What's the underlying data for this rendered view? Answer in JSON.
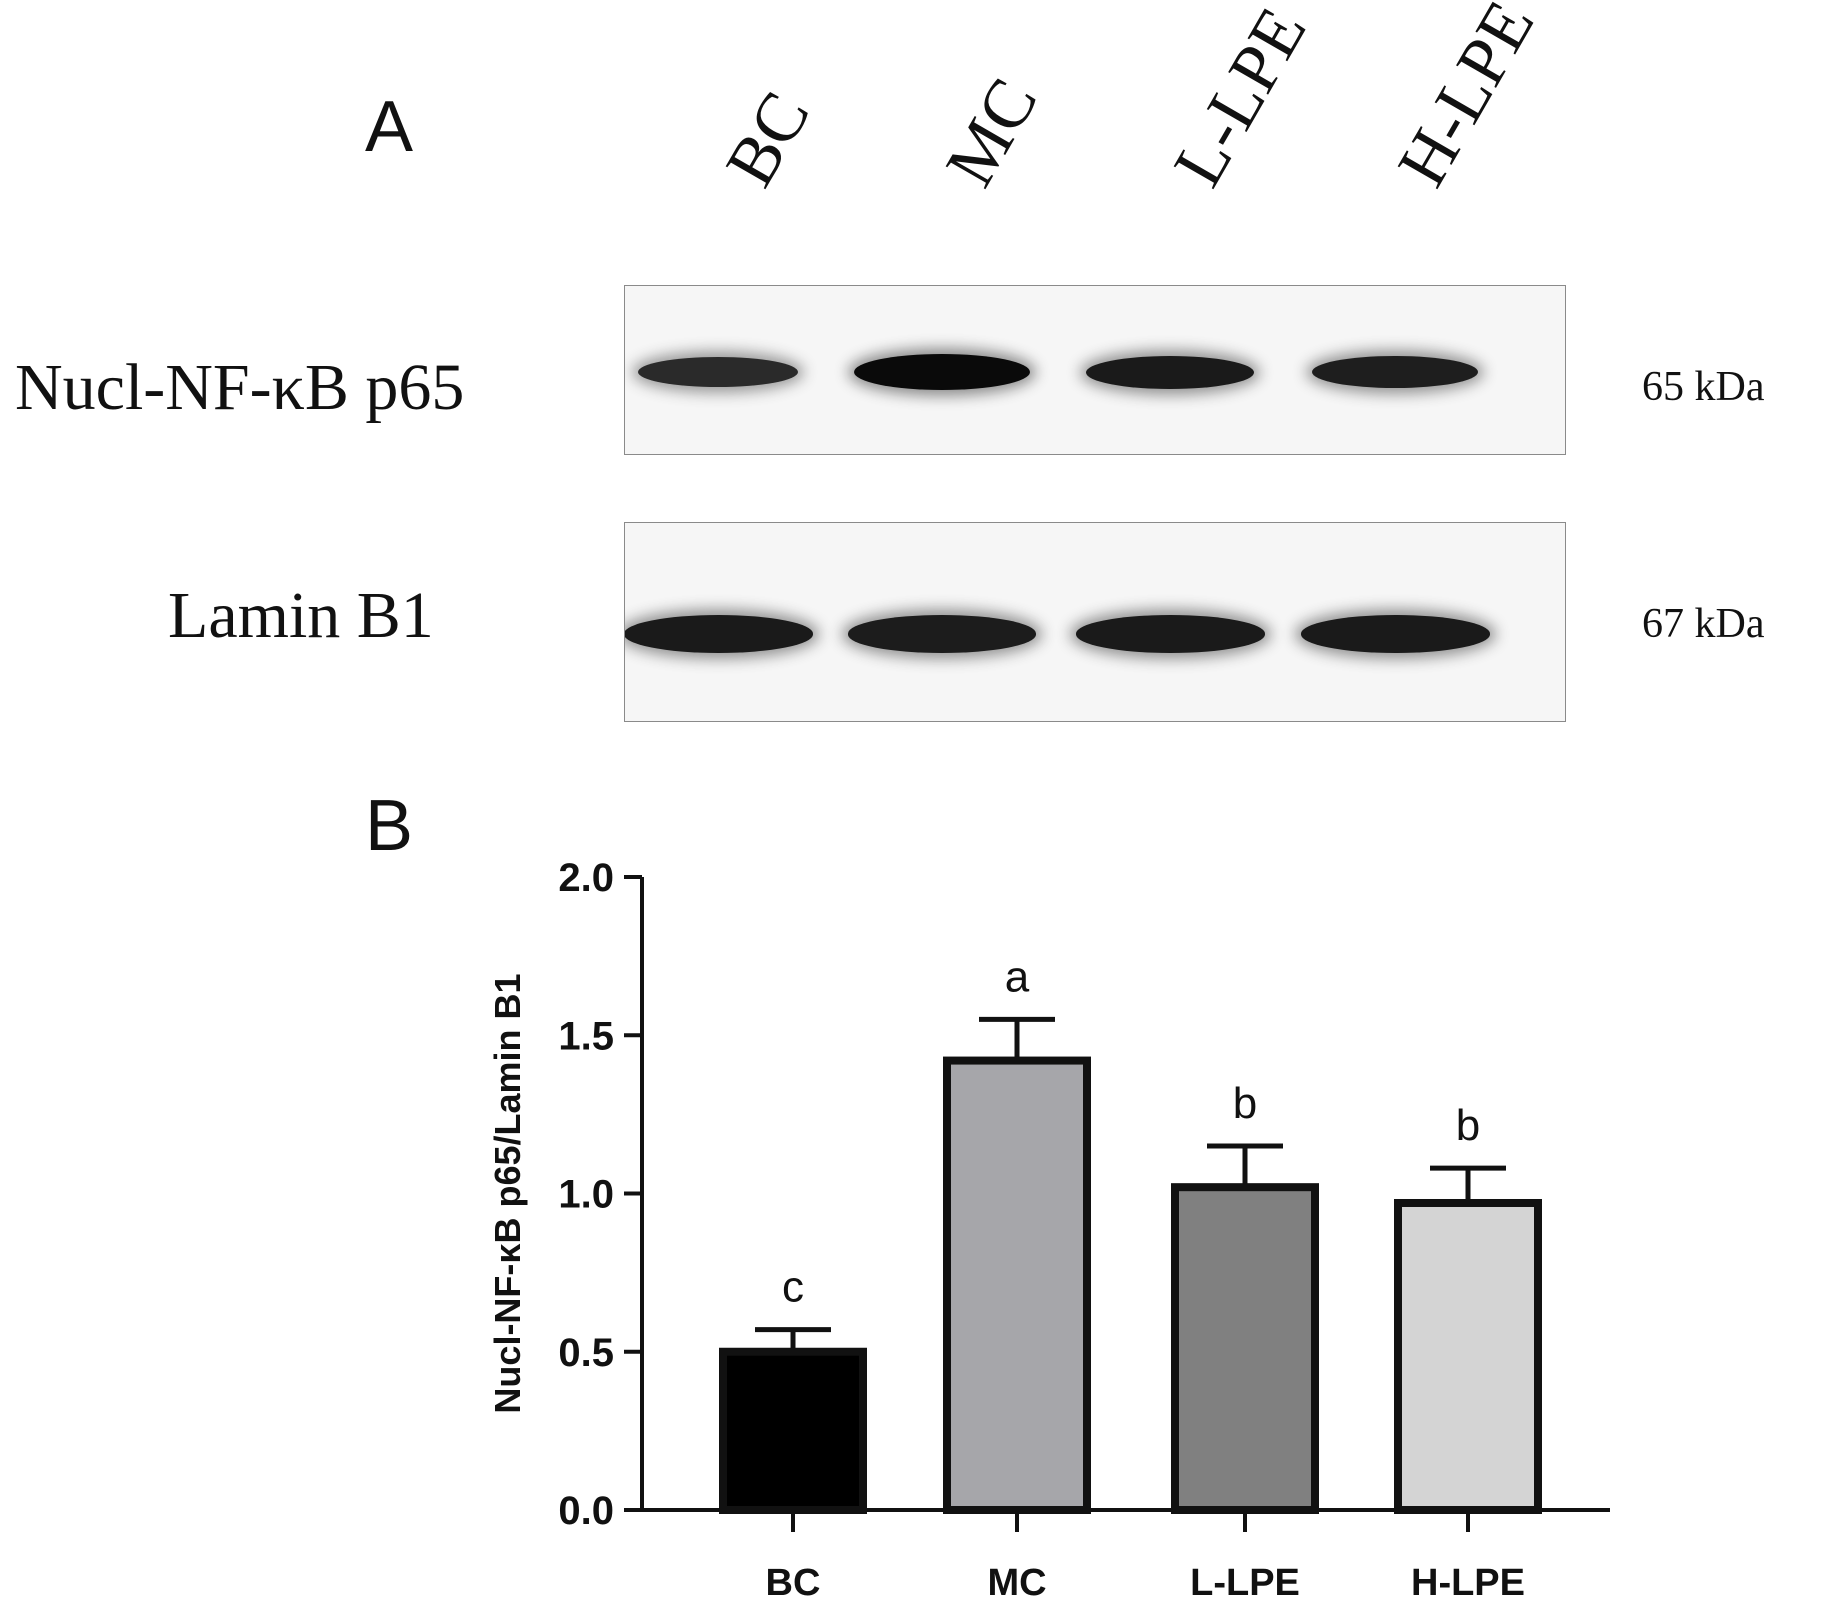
{
  "panel_a": {
    "letter": "A",
    "lanes": [
      "BC",
      "MC",
      "L-LPE",
      "H-LPE"
    ],
    "blots": [
      {
        "protein": "Nucl-NF-κB p65",
        "kda": "65 kDa",
        "band_intensity": [
          0.6,
          1.0,
          0.8,
          0.75
        ]
      },
      {
        "protein": "Lamin B1",
        "kda": "67 kDa",
        "band_intensity": [
          0.8,
          0.78,
          0.8,
          0.8
        ]
      }
    ]
  },
  "panel_b": {
    "letter": "B"
  },
  "chart_data": {
    "type": "bar",
    "title": "",
    "xlabel": "",
    "ylabel": "Nucl-NF-κB p65/Lamin B1",
    "categories": [
      "BC",
      "MC",
      "L-LPE",
      "H-LPE"
    ],
    "values": [
      0.5,
      1.42,
      1.02,
      0.97
    ],
    "errors": [
      0.07,
      0.13,
      0.13,
      0.11
    ],
    "significance": [
      "c",
      "a",
      "b",
      "b"
    ],
    "colors": [
      "#000000",
      "#a6a6aa",
      "#808080",
      "#d4d4d4"
    ],
    "ylim": [
      0,
      2.0
    ],
    "yticks": [
      "0.0",
      "0.5",
      "1.0",
      "1.5",
      "2.0"
    ],
    "grid": false
  }
}
